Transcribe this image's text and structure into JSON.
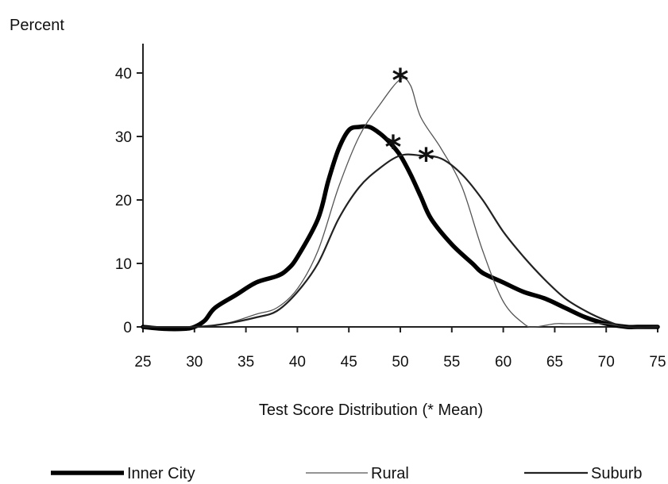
{
  "chart_data": {
    "type": "line",
    "title": "",
    "ylabel": "Percent",
    "xlabel": "Test Score Distribution (* Mean)",
    "xlim": [
      25,
      75
    ],
    "ylim": [
      0,
      45
    ],
    "x_ticks": [
      25,
      30,
      35,
      40,
      45,
      50,
      55,
      60,
      65,
      70,
      75
    ],
    "y_ticks": [
      0,
      10,
      20,
      30,
      40
    ],
    "grid": false,
    "legend_position": "bottom",
    "series": [
      {
        "name": "Inner City",
        "style": "thick",
        "color": "#000000",
        "points": [
          [
            25,
            0
          ],
          [
            27,
            -0.3
          ],
          [
            29,
            -0.3
          ],
          [
            30,
            0
          ],
          [
            31,
            1
          ],
          [
            32,
            3
          ],
          [
            34,
            5
          ],
          [
            36,
            7
          ],
          [
            38,
            8
          ],
          [
            39,
            9
          ],
          [
            40,
            11
          ],
          [
            42,
            17
          ],
          [
            43,
            23
          ],
          [
            44,
            28
          ],
          [
            45,
            31
          ],
          [
            46,
            31.5
          ],
          [
            47,
            31.5
          ],
          [
            48,
            30.5
          ],
          [
            49,
            29
          ],
          [
            50,
            27
          ],
          [
            51,
            24
          ],
          [
            52,
            20.5
          ],
          [
            53,
            17
          ],
          [
            55,
            13
          ],
          [
            57,
            10
          ],
          [
            58,
            8.5
          ],
          [
            60,
            7
          ],
          [
            62,
            5.5
          ],
          [
            64,
            4.5
          ],
          [
            66,
            3
          ],
          [
            68,
            1.5
          ],
          [
            70,
            0.5
          ],
          [
            72,
            0
          ],
          [
            73,
            0
          ],
          [
            75,
            0
          ]
        ]
      },
      {
        "name": "Rural",
        "style": "thin",
        "color": "#555555",
        "points": [
          [
            25,
            0
          ],
          [
            30,
            0
          ],
          [
            33,
            0.5
          ],
          [
            36,
            2
          ],
          [
            38,
            3
          ],
          [
            40,
            6
          ],
          [
            42,
            12
          ],
          [
            44,
            22
          ],
          [
            46,
            30
          ],
          [
            48,
            35
          ],
          [
            50,
            39
          ],
          [
            51,
            38
          ],
          [
            52,
            33
          ],
          [
            54,
            28
          ],
          [
            56,
            22
          ],
          [
            58,
            12
          ],
          [
            60,
            4
          ],
          [
            62,
            0.5
          ],
          [
            63,
            0
          ],
          [
            65,
            0.5
          ],
          [
            66,
            0.5
          ],
          [
            68,
            0.5
          ],
          [
            70,
            0.5
          ],
          [
            72,
            0
          ],
          [
            75,
            0
          ]
        ]
      },
      {
        "name": "Suburb",
        "style": "medium",
        "color": "#222222",
        "points": [
          [
            25,
            0
          ],
          [
            30,
            0
          ],
          [
            33,
            0.5
          ],
          [
            36,
            1.5
          ],
          [
            38,
            2.5
          ],
          [
            40,
            5.5
          ],
          [
            42,
            10
          ],
          [
            44,
            17
          ],
          [
            46,
            22
          ],
          [
            48,
            25
          ],
          [
            50,
            27
          ],
          [
            52,
            27
          ],
          [
            54,
            26.5
          ],
          [
            56,
            24
          ],
          [
            58,
            20
          ],
          [
            60,
            15
          ],
          [
            62,
            11
          ],
          [
            64,
            7.5
          ],
          [
            66,
            4.5
          ],
          [
            68,
            2.5
          ],
          [
            70,
            1
          ],
          [
            72,
            0
          ],
          [
            75,
            0
          ]
        ]
      }
    ],
    "mean_markers": [
      {
        "series": "Rural",
        "x": 50,
        "y": 39,
        "symbol": "*"
      },
      {
        "series": "Inner City",
        "x": 49.3,
        "y": 28.5,
        "symbol": "*"
      },
      {
        "series": "Suburb",
        "x": 52.5,
        "y": 26.5,
        "symbol": "*"
      }
    ]
  }
}
